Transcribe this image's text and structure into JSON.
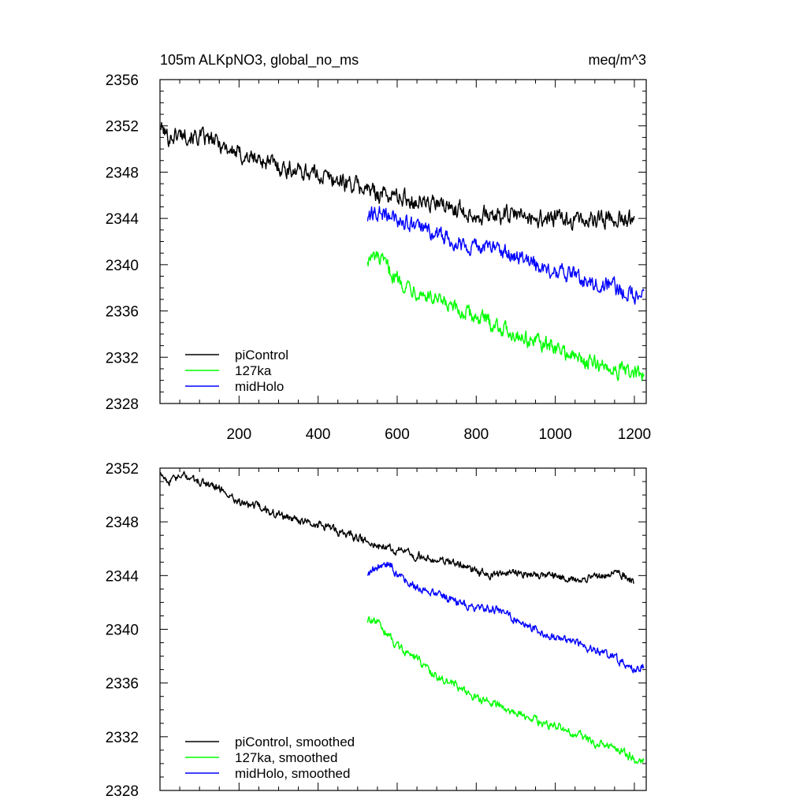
{
  "title_left": "105m ALKpNO3, global_no_ms",
  "title_right": "meq/m^3",
  "colors": {
    "piControl": "#000000",
    "127ka": "#00ff00",
    "midHolo": "#0000ff"
  },
  "chart_data": [
    {
      "type": "line",
      "xlim": [
        0,
        1230
      ],
      "ylim": [
        2328,
        2356
      ],
      "xticks": [
        200,
        400,
        600,
        800,
        1000,
        1200
      ],
      "xtick_labels": [
        "200",
        "400",
        "600",
        "800",
        "1000",
        "1200"
      ],
      "yticks": [
        2328,
        2332,
        2336,
        2340,
        2344,
        2348,
        2352,
        2356
      ],
      "ytick_labels": [
        "2328",
        "2332",
        "2336",
        "2340",
        "2344",
        "2348",
        "2352",
        "2356"
      ],
      "grid": false,
      "legend_position": "bottom-left",
      "series": [
        {
          "name": "piControl",
          "color": "#000000",
          "noise": 0.6,
          "x": [
            1,
            20,
            60,
            100,
            150,
            200,
            260,
            320,
            380,
            450,
            500,
            550,
            600,
            650,
            700,
            760,
            800,
            850,
            900,
            950,
            1000,
            1050,
            1100,
            1150,
            1200
          ],
          "y": [
            2352.0,
            2351.0,
            2351.4,
            2351.0,
            2350.5,
            2349.5,
            2349.0,
            2348.3,
            2348.0,
            2347.3,
            2346.8,
            2346.2,
            2345.9,
            2345.5,
            2345.2,
            2344.8,
            2344.3,
            2344.2,
            2344.3,
            2344.0,
            2344.0,
            2343.8,
            2343.9,
            2344.1,
            2343.8
          ]
        },
        {
          "name": "127ka",
          "color": "#00ff00",
          "noise": 0.55,
          "x": [
            525,
            550,
            600,
            650,
            700,
            750,
            800,
            850,
            900,
            950,
            1000,
            1050,
            1100,
            1150,
            1200,
            1225
          ],
          "y": [
            2340.5,
            2340.6,
            2338.8,
            2337.8,
            2336.8,
            2336.0,
            2335.5,
            2334.8,
            2334.0,
            2333.3,
            2332.8,
            2332.0,
            2331.4,
            2331.0,
            2330.6,
            2330.3
          ]
        },
        {
          "name": "midHolo",
          "color": "#0000ff",
          "noise": 0.55,
          "x": [
            525,
            550,
            600,
            650,
            700,
            750,
            800,
            850,
            900,
            950,
            1000,
            1050,
            1100,
            1150,
            1200,
            1225
          ],
          "y": [
            2344.0,
            2344.5,
            2344.0,
            2343.2,
            2342.6,
            2342.0,
            2341.6,
            2341.5,
            2340.8,
            2340.0,
            2339.4,
            2339.0,
            2338.4,
            2338.1,
            2337.3,
            2337.2
          ]
        }
      ]
    },
    {
      "type": "line",
      "xlim": [
        0,
        1230
      ],
      "ylim": [
        2328,
        2352
      ],
      "xticks": [
        200,
        400,
        600,
        800,
        1000,
        1200
      ],
      "yticks": [
        2328,
        2332,
        2336,
        2340,
        2344,
        2348,
        2352
      ],
      "ytick_labels": [
        "2328",
        "2332",
        "2336",
        "2340",
        "2344",
        "2348",
        "2352"
      ],
      "grid": false,
      "legend_position": "bottom-left",
      "series": [
        {
          "name": "piControl, smoothed",
          "color": "#000000",
          "noise": 0.25,
          "x": [
            1,
            20,
            60,
            100,
            150,
            200,
            260,
            320,
            380,
            450,
            500,
            550,
            600,
            650,
            700,
            760,
            800,
            850,
            900,
            950,
            1000,
            1050,
            1100,
            1150,
            1200
          ],
          "y": [
            2351.8,
            2351.0,
            2351.4,
            2351.0,
            2350.5,
            2349.5,
            2349.0,
            2348.3,
            2348.0,
            2347.3,
            2346.8,
            2346.2,
            2345.9,
            2345.5,
            2345.2,
            2344.8,
            2344.3,
            2344.0,
            2344.3,
            2344.0,
            2344.0,
            2343.6,
            2343.9,
            2344.2,
            2343.6
          ]
        },
        {
          "name": "127ka, smoothed",
          "color": "#00ff00",
          "noise": 0.25,
          "x": [
            525,
            550,
            600,
            650,
            700,
            750,
            800,
            850,
            900,
            950,
            1000,
            1050,
            1100,
            1150,
            1200,
            1225
          ],
          "y": [
            2340.6,
            2340.5,
            2338.8,
            2337.8,
            2336.5,
            2335.8,
            2334.8,
            2334.5,
            2333.8,
            2333.2,
            2332.8,
            2332.2,
            2331.5,
            2331.2,
            2330.4,
            2330.4
          ]
        },
        {
          "name": "midHolo, smoothed",
          "color": "#0000ff",
          "noise": 0.25,
          "x": [
            525,
            550,
            580,
            600,
            650,
            700,
            750,
            800,
            850,
            900,
            950,
            1000,
            1050,
            1100,
            1150,
            1200,
            1225
          ],
          "y": [
            2344.1,
            2344.6,
            2345.0,
            2344.1,
            2343.2,
            2342.6,
            2342.0,
            2341.6,
            2341.5,
            2340.8,
            2340.0,
            2339.3,
            2339.0,
            2338.4,
            2337.9,
            2337.0,
            2337.3
          ]
        }
      ]
    }
  ]
}
